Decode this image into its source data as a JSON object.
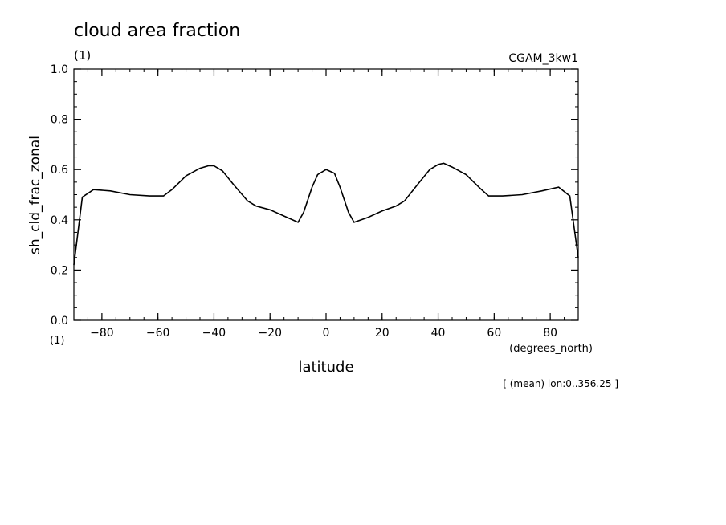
{
  "chart_data": {
    "type": "line",
    "title": "cloud area fraction",
    "title_units": "(1)",
    "run_label": "CGAM_3kw1",
    "ylabel": "sh_cld_frac_zonal",
    "y_units": "(1)",
    "xlabel": "latitude",
    "x_units": "(degrees_north)",
    "footnote": "[ (mean) lon:0..356.25 ]",
    "xlim": [
      -90,
      90
    ],
    "ylim": [
      0,
      1
    ],
    "x_ticks": [
      -80,
      -60,
      -40,
      -20,
      0,
      20,
      40,
      60,
      80
    ],
    "x_tick_labels": [
      "−80",
      "−60",
      "−40",
      "−20",
      "0",
      "20",
      "40",
      "60",
      "80"
    ],
    "y_ticks": [
      0,
      0.2,
      0.4,
      0.6,
      0.8,
      1.0
    ],
    "y_tick_labels": [
      "0.0",
      "0.2",
      "0.4",
      "0.6",
      "0.8",
      "1.0"
    ],
    "grid": false,
    "line_color": "#000000",
    "series": [
      {
        "x": [
          -90,
          -87,
          -83,
          -77,
          -70,
          -63,
          -58,
          -55,
          -50,
          -45,
          -42,
          -40,
          -37,
          -33,
          -28,
          -25,
          -20,
          -15,
          -10,
          -8,
          -5,
          -3,
          0,
          3,
          5,
          8,
          10,
          15,
          20,
          25,
          28,
          33,
          37,
          40,
          42,
          45,
          50,
          55,
          58,
          63,
          70,
          77,
          83,
          87,
          90
        ],
        "y": [
          0.22,
          0.49,
          0.52,
          0.515,
          0.5,
          0.495,
          0.495,
          0.52,
          0.575,
          0.605,
          0.615,
          0.615,
          0.595,
          0.54,
          0.475,
          0.455,
          0.44,
          0.415,
          0.39,
          0.43,
          0.53,
          0.58,
          0.6,
          0.585,
          0.53,
          0.43,
          0.39,
          0.41,
          0.435,
          0.455,
          0.475,
          0.545,
          0.6,
          0.62,
          0.625,
          0.61,
          0.58,
          0.525,
          0.495,
          0.495,
          0.5,
          0.515,
          0.53,
          0.495,
          0.25
        ]
      }
    ]
  }
}
